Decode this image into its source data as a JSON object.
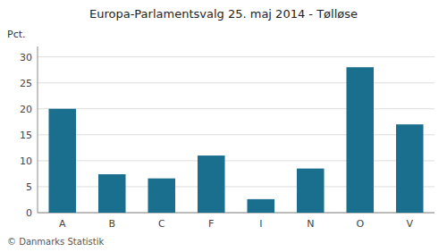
{
  "chart_data": {
    "type": "bar",
    "title": "Europa-Parlamentsvalg 25. maj 2014 - Tølløse",
    "ylabel": "Pct.",
    "annotations": [
      "© Danmarks Statistik"
    ],
    "categories": [
      "A",
      "B",
      "C",
      "F",
      "I",
      "N",
      "O",
      "V"
    ],
    "values": [
      20.0,
      7.4,
      6.6,
      11.0,
      2.6,
      8.5,
      28.0,
      17.0
    ],
    "color": "#1a6e8e",
    "ylim": [
      0,
      32
    ],
    "yticks": [
      0,
      5,
      10,
      15,
      20,
      25,
      30
    ],
    "grid": true
  }
}
